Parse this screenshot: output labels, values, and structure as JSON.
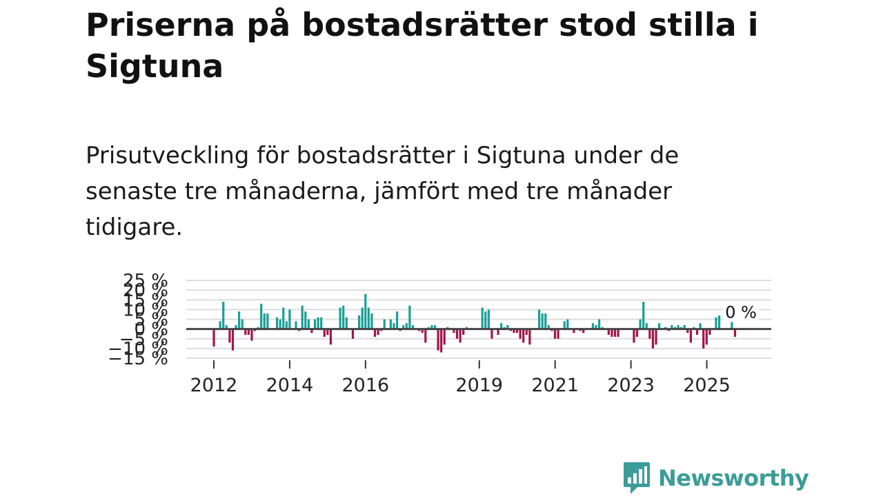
{
  "header": {
    "title": "Priserna på bostadsrätter stod stilla i Sigtuna",
    "subtitle": "Prisutveckling för bostadsrätter i Sigtuna under de senaste tre månaderna, jämfört med tre månader tidigare."
  },
  "brand": {
    "name": "Newsworthy",
    "color": "#3b9c98",
    "icon": "newsworthy-logo-icon"
  },
  "colors": {
    "positive": "#1a9e96",
    "negative": "#a3154a",
    "zero_line": "#444444",
    "grid": "#dddddd"
  },
  "chart_data": {
    "type": "bar",
    "title": "Priserna på bostadsrätter stod stilla i Sigtuna",
    "xlabel": "",
    "ylabel": "",
    "ylim": [
      -15,
      25
    ],
    "y_ticks": [
      -15,
      -10,
      -5,
      0,
      5,
      10,
      15,
      20,
      25
    ],
    "y_tick_labels": [
      "−15 %",
      "−10 %",
      "−5 %",
      "0 %",
      "5 %",
      "10 %",
      "15 %",
      "20 %",
      "25 %"
    ],
    "x_start": 2012.0,
    "x_step": 0.0833,
    "x_ticks": [
      2012,
      2014,
      2016,
      2019,
      2021,
      2023,
      2025
    ],
    "x_tick_labels": [
      "2012",
      "2014",
      "2016",
      "2019",
      "2021",
      "2023",
      "2025"
    ],
    "grid": true,
    "last_value_label": "0 %",
    "values": [
      -9,
      0,
      4,
      14,
      2,
      -7,
      -11,
      2,
      9,
      5,
      -3,
      -3,
      -6,
      -1,
      1,
      13,
      8,
      8,
      0,
      0,
      6,
      5,
      11,
      4,
      10,
      0,
      4,
      -1,
      12,
      9,
      5,
      -2,
      5,
      6,
      6,
      -4,
      -3,
      -8,
      0,
      0,
      11,
      12,
      6,
      0,
      -5,
      0,
      7,
      11,
      18,
      11,
      8,
      -4,
      -3,
      -1,
      5,
      0,
      5,
      3,
      9,
      -1,
      2,
      3,
      12,
      2,
      0,
      -1,
      -2,
      -7,
      1,
      2,
      2,
      -11,
      -12,
      -8,
      1,
      0,
      -2,
      -5,
      -7,
      -3,
      1,
      0,
      0,
      0,
      0,
      11,
      9,
      10,
      -5,
      0,
      -3,
      3,
      1,
      2,
      -1,
      -2,
      -2,
      -5,
      -7,
      -3,
      -8,
      0,
      0,
      10,
      8,
      8,
      2,
      -1,
      -5,
      -5,
      0,
      4,
      5,
      0,
      -2,
      0,
      -1,
      -2,
      0,
      0,
      3,
      2,
      5,
      1,
      0,
      -3,
      -4,
      -4,
      -4,
      0,
      0,
      0,
      0,
      -7,
      -4,
      5,
      14,
      3,
      -5,
      -10,
      -8,
      3,
      0,
      1,
      -1,
      2,
      1,
      2,
      1,
      2,
      -2,
      -7,
      1,
      -3,
      3,
      -10,
      -8,
      -3,
      0,
      6,
      7,
      0,
      0,
      0,
      4,
      -4,
      0
    ]
  }
}
